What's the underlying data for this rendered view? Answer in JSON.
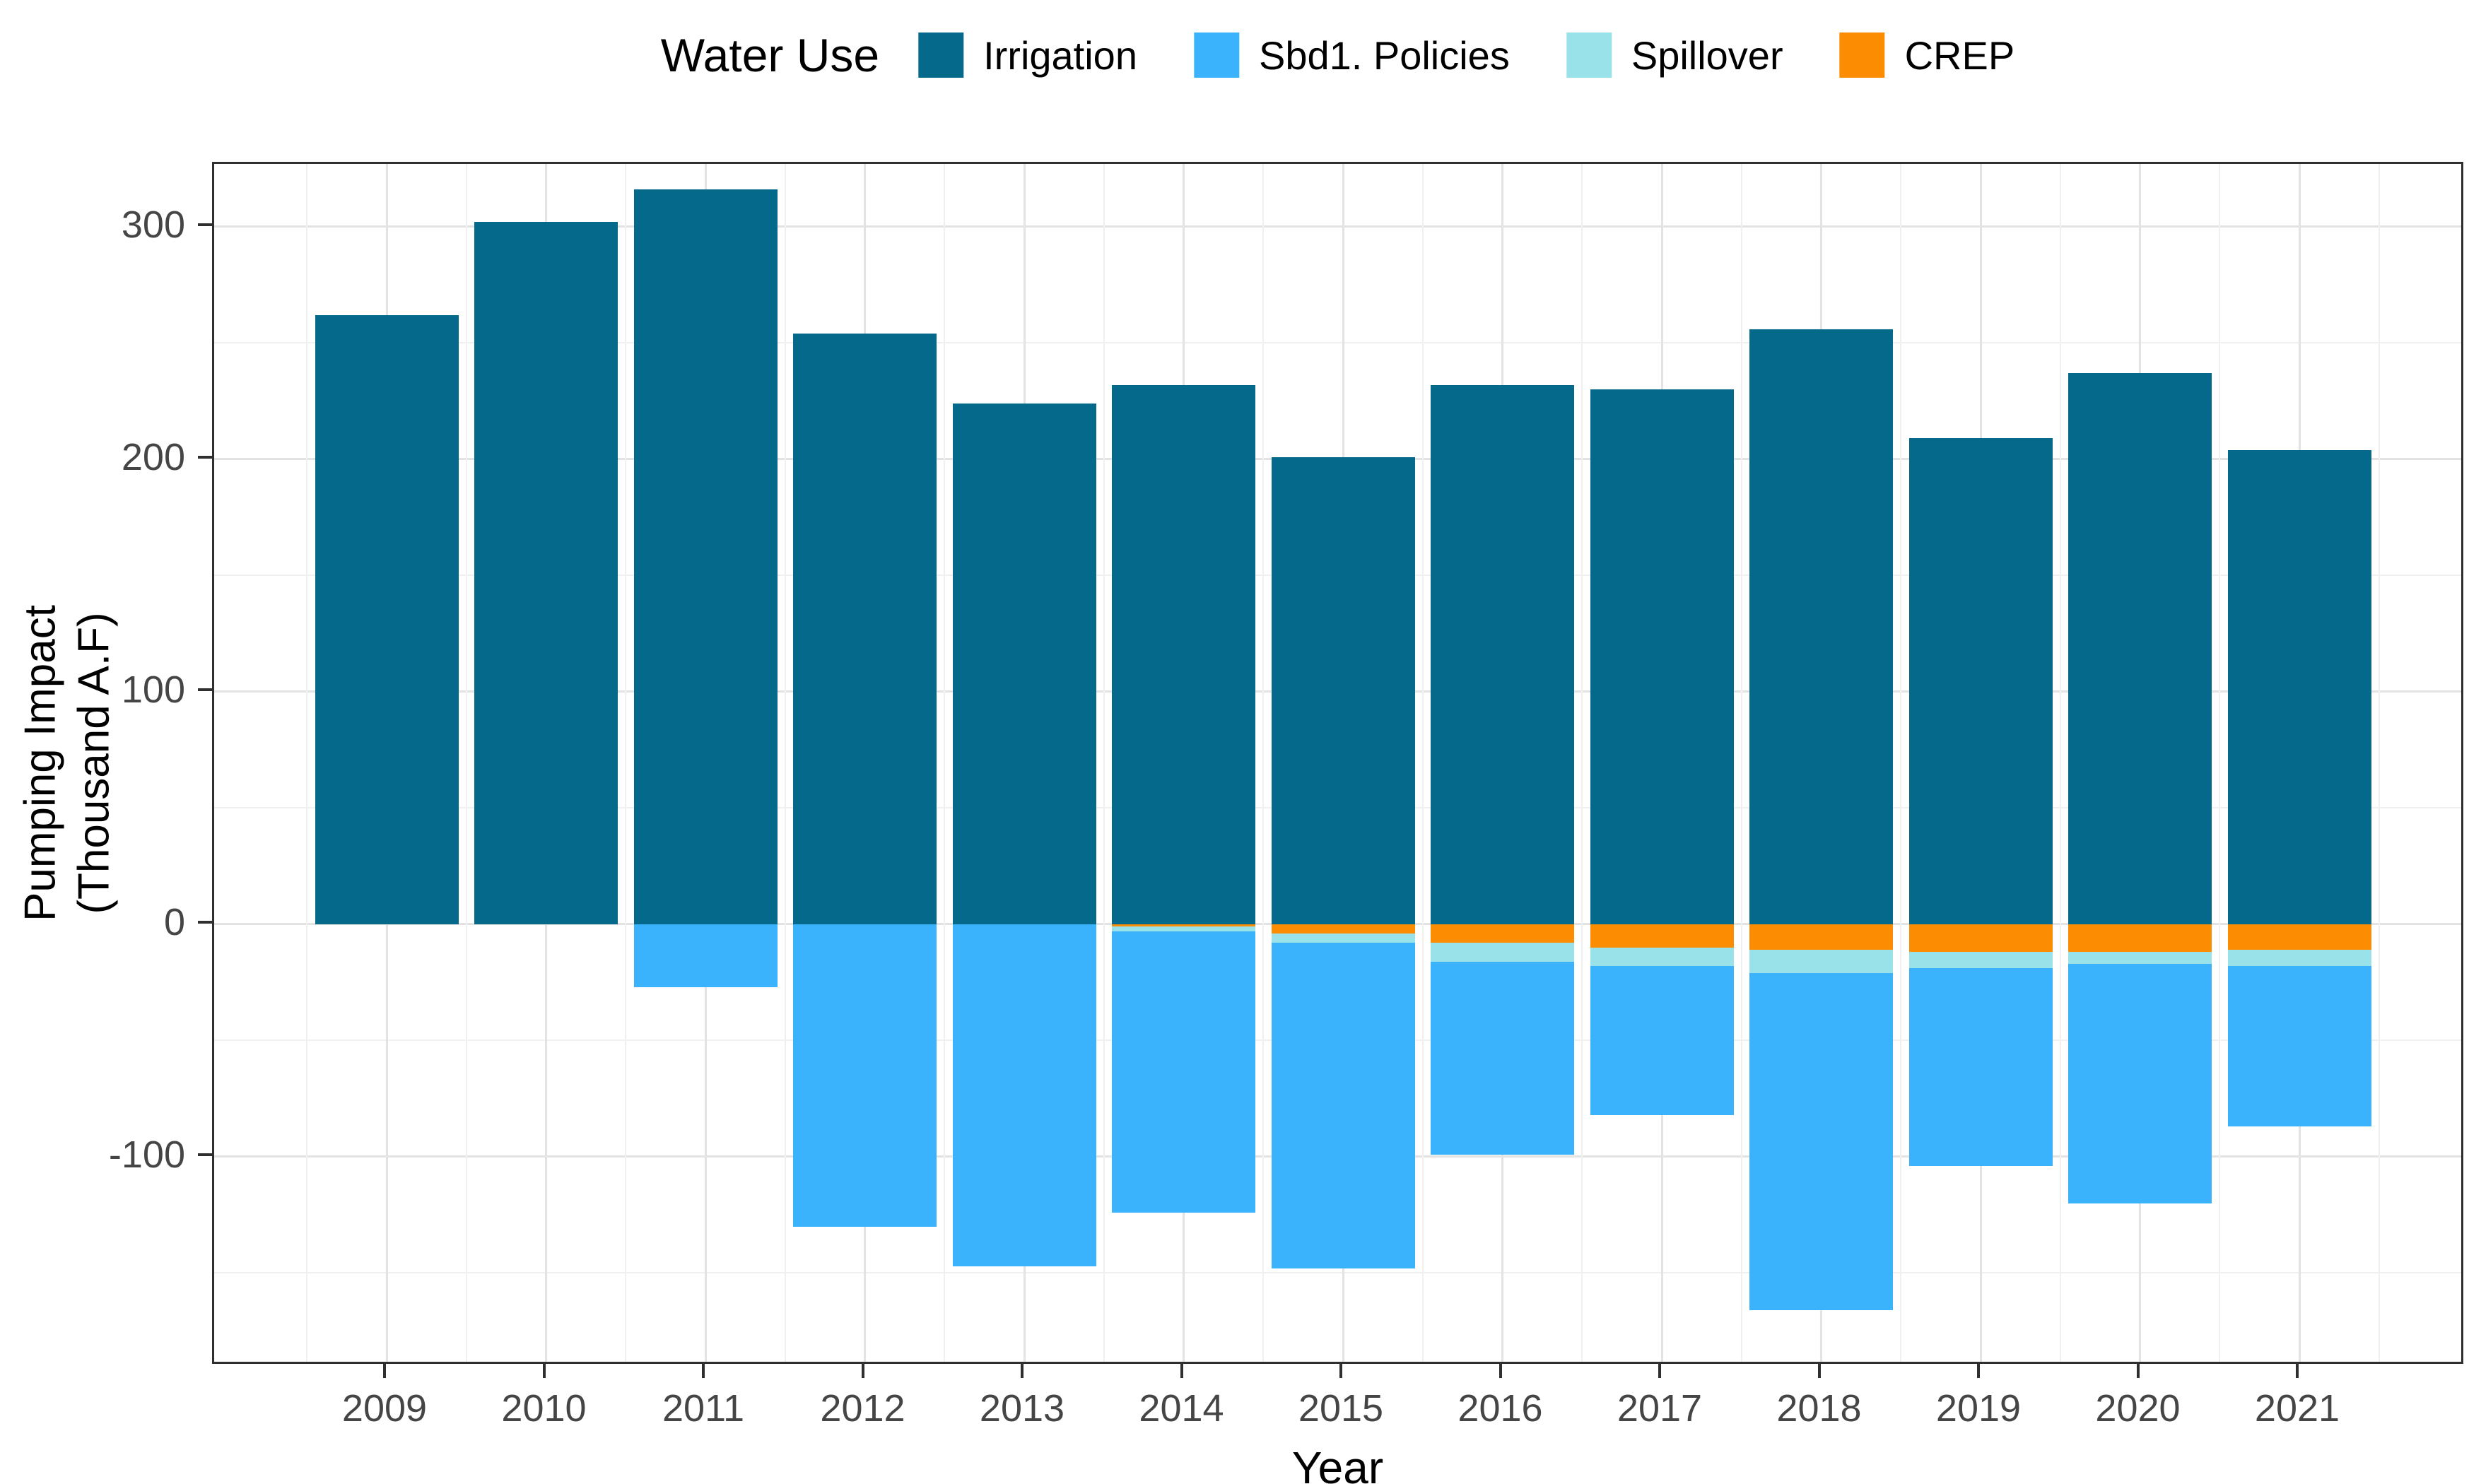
{
  "figure": {
    "legend": {
      "title": "Water Use"
    },
    "y_axis": {
      "title_line1": "Pumping Impact",
      "title_line2": "(Thousand A.F)",
      "ticks": [
        "300",
        "200",
        "100",
        "0",
        "-100"
      ],
      "tick_values": [
        300,
        200,
        100,
        0,
        -100
      ]
    },
    "x_axis": {
      "title": "Year",
      "ticks": [
        "2009",
        "2010",
        "2011",
        "2012",
        "2013",
        "2014",
        "2015",
        "2016",
        "2017",
        "2018",
        "2019",
        "2020",
        "2021"
      ]
    }
  },
  "chart_data": {
    "type": "bar",
    "stacked": true,
    "title": "",
    "xlabel": "Year",
    "ylabel": "Pumping Impact (Thousand A.F)",
    "legend_title": "Water Use",
    "legend_position": "top-center",
    "grid": true,
    "categories": [
      2009,
      2010,
      2011,
      2012,
      2013,
      2014,
      2015,
      2016,
      2017,
      2018,
      2019,
      2020,
      2021
    ],
    "series": [
      {
        "name": "Irrigation",
        "color": "#05698C",
        "values": [
          262,
          302,
          316,
          254,
          224,
          232,
          201,
          232,
          230,
          256,
          209,
          237,
          204
        ]
      },
      {
        "name": "Sbd1. Policies",
        "color": "#3BB2FC",
        "values": [
          0,
          0,
          -27,
          -130,
          -147,
          -121,
          -140,
          -83,
          -64,
          -145,
          -85,
          -103,
          -69
        ]
      },
      {
        "name": "Spillover",
        "color": "#99E2E9",
        "values": [
          0,
          0,
          0,
          0,
          0,
          -2,
          -4,
          -8,
          -8,
          -10,
          -7,
          -5,
          -7
        ]
      },
      {
        "name": "CREP",
        "color": "#FC8D03",
        "values": [
          0,
          0,
          0,
          0,
          0,
          -1,
          -4,
          -8,
          -10,
          -11,
          -12,
          -12,
          -11
        ]
      }
    ],
    "negative_stack_order_from_zero": [
      "CREP",
      "Spillover",
      "Sbd1. Policies"
    ],
    "ylim": [
      -190,
      327
    ],
    "y_major_gridlines": [
      -100,
      0,
      100,
      200,
      300
    ],
    "y_minor_gridlines": [
      -150,
      -50,
      50,
      150,
      250
    ],
    "colors": {
      "irrigation": "#05698C",
      "sbd1_policies": "#3BB2FC",
      "spillover": "#99E2E9",
      "crep": "#FC8D03",
      "grid_major": "#e3e3e3",
      "grid_minor": "#f0f0f0",
      "panel_border": "#2f2f2f",
      "tick_text": "#454545"
    }
  }
}
